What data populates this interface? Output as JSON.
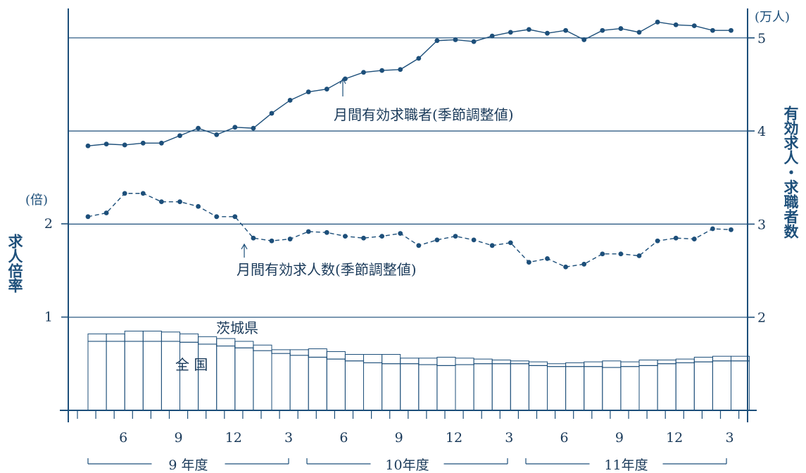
{
  "chart_data": {
    "type": "line",
    "left_axis_label": "求人倍率",
    "left_axis_unit": "(倍)",
    "right_axis_label": "有効求人・求職者数",
    "right_axis_unit": "(万人)",
    "left_ticks": [
      "1",
      "2"
    ],
    "right_ticks": [
      "2",
      "3",
      "4",
      "5"
    ],
    "x_tick_labels": [
      "6",
      "9",
      "12",
      "3",
      "6",
      "9",
      "12",
      "3",
      "6",
      "9",
      "12",
      "3"
    ],
    "fiscal_year_labels": [
      "9 年度",
      "10年度",
      "11年度"
    ],
    "months_count": 36,
    "series": [
      {
        "name": "月間有効求職者(季節調整値)",
        "axis": "right",
        "style": "solid-dots",
        "values": [
          3.84,
          3.86,
          3.85,
          3.87,
          3.87,
          3.95,
          4.03,
          3.96,
          4.04,
          4.03,
          4.19,
          4.33,
          4.42,
          4.45,
          4.56,
          4.63,
          4.65,
          4.66,
          4.78,
          4.97,
          4.98,
          4.96,
          5.02,
          5.06,
          5.09,
          5.05,
          5.08,
          4.98,
          5.08,
          5.1,
          5.06,
          5.17,
          5.14,
          5.13,
          5.08,
          5.08
        ]
      },
      {
        "name": "月間有効求人数(季節調整値)",
        "axis": "right",
        "style": "dashed-dots",
        "values": [
          3.08,
          3.12,
          3.33,
          3.33,
          3.24,
          3.24,
          3.19,
          3.08,
          3.08,
          2.85,
          2.82,
          2.84,
          2.92,
          2.91,
          2.87,
          2.85,
          2.87,
          2.9,
          2.77,
          2.83,
          2.87,
          2.83,
          2.77,
          2.8,
          2.59,
          2.63,
          2.54,
          2.57,
          2.68,
          2.68,
          2.66,
          2.82,
          2.85,
          2.84,
          2.95,
          2.94
        ]
      },
      {
        "name": "茨城県",
        "axis": "left",
        "style": "stepped-bars",
        "values": [
          0.82,
          0.82,
          0.85,
          0.85,
          0.84,
          0.82,
          0.79,
          0.77,
          0.74,
          0.7,
          0.65,
          0.65,
          0.66,
          0.63,
          0.6,
          0.6,
          0.6,
          0.56,
          0.56,
          0.57,
          0.56,
          0.55,
          0.54,
          0.53,
          0.52,
          0.5,
          0.51,
          0.52,
          0.53,
          0.52,
          0.54,
          0.54,
          0.55,
          0.57,
          0.58,
          0.58
        ]
      },
      {
        "name": "全 国",
        "axis": "left",
        "style": "stepped-line",
        "values": [
          0.74,
          0.74,
          0.74,
          0.74,
          0.74,
          0.73,
          0.71,
          0.69,
          0.67,
          0.64,
          0.61,
          0.59,
          0.57,
          0.55,
          0.53,
          0.51,
          0.5,
          0.5,
          0.49,
          0.48,
          0.49,
          0.5,
          0.5,
          0.5,
          0.48,
          0.47,
          0.47,
          0.47,
          0.46,
          0.47,
          0.48,
          0.5,
          0.51,
          0.52,
          0.53,
          0.53
        ]
      }
    ],
    "annotations": {
      "job_seekers_label": "月間有効求職者(季節調整値)",
      "job_openings_label": "月間有効求人数(季節調整値)",
      "ibaraki_label": "茨城県",
      "national_label": "全 国"
    },
    "colors": {
      "line": "#1d4f7a",
      "axis": "#1d4f7a",
      "text": "#1a3a5a"
    }
  }
}
